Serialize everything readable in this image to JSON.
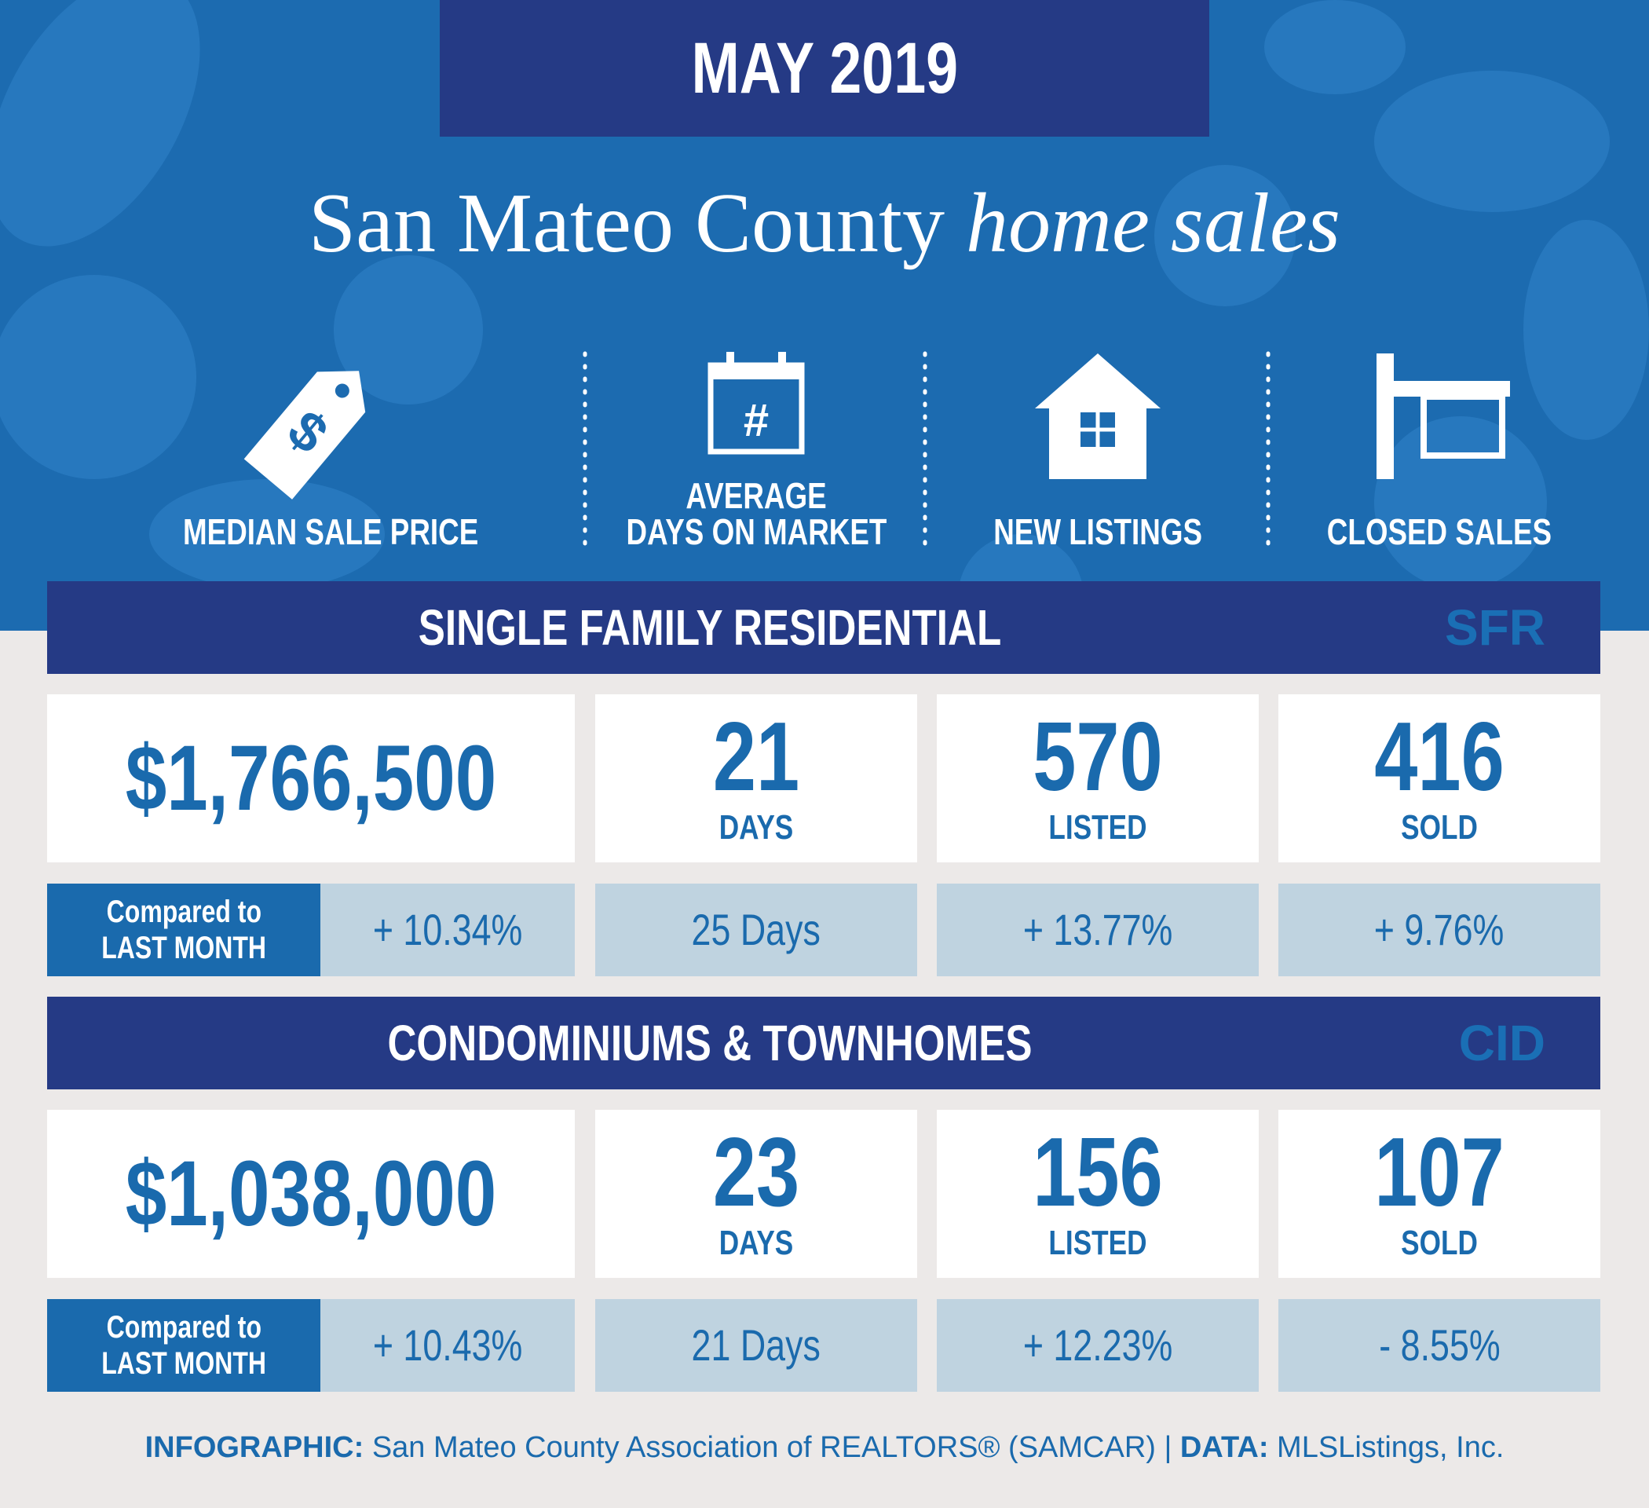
{
  "header": {
    "month": "MAY 2019",
    "title": "San Mateo County",
    "title_italic": "home sales"
  },
  "metrics": [
    {
      "lines": [
        "MEDIAN SALE PRICE"
      ]
    },
    {
      "lines": [
        "AVERAGE",
        "DAYS ON MARKET"
      ]
    },
    {
      "lines": [
        "NEW LISTINGS"
      ]
    },
    {
      "lines": [
        "CLOSED SALES"
      ]
    }
  ],
  "sections": [
    {
      "title": "SINGLE FAMILY RESIDENTIAL",
      "code": "SFR",
      "values": [
        {
          "value": "$1,766,500"
        },
        {
          "value": "21",
          "unit": "DAYS"
        },
        {
          "value": "570",
          "unit": "LISTED"
        },
        {
          "value": "416",
          "unit": "SOLD"
        }
      ],
      "comparison_label": [
        "Compared to",
        "LAST MONTH"
      ],
      "changes": [
        "+ 10.34%",
        "25 Days",
        "+ 13.77%",
        "+ 9.76%"
      ]
    },
    {
      "title": "CONDOMINIUMS & TOWNHOMES",
      "code": "CID",
      "values": [
        {
          "value": "$1,038,000"
        },
        {
          "value": "23",
          "unit": "DAYS"
        },
        {
          "value": "156",
          "unit": "LISTED"
        },
        {
          "value": "107",
          "unit": "SOLD"
        }
      ],
      "comparison_label": [
        "Compared to",
        "LAST MONTH"
      ],
      "changes": [
        "+ 10.43%",
        "21 Days",
        "+ 12.23%",
        "- 8.55%"
      ]
    }
  ],
  "footer": {
    "label1": "INFOGRAPHIC:",
    "text1": "San Mateo County Association of REALTORS® (SAMCAR) |",
    "label2": "DATA:",
    "text2": "MLSListings, Inc."
  }
}
